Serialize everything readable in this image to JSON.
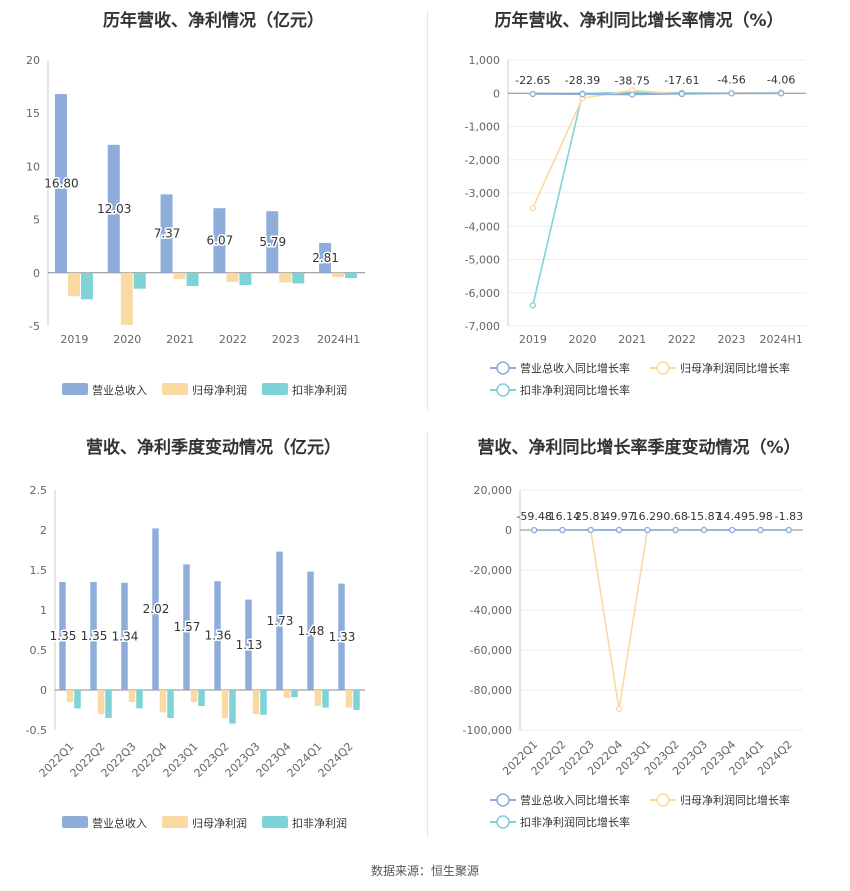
{
  "colors": {
    "revenue": "#8eaddb",
    "net_profit": "#fbd9a2",
    "deducted_profit": "#7fd3d6",
    "revenue_line": "#8eaddb",
    "net_profit_line": "#fbd9a2",
    "deducted_line": "#7fd3d6"
  },
  "source": "数据来源：恒生聚源",
  "chart_data": [
    {
      "type": "bar",
      "title": "历年营收、净利情况（亿元）",
      "categories": [
        "2019",
        "2020",
        "2021",
        "2022",
        "2023",
        "2024H1"
      ],
      "ylim": [
        -5,
        20
      ],
      "yticks": [
        "20",
        "15",
        "10",
        "5",
        "0",
        "-5"
      ],
      "series": [
        {
          "name": "营业总收入",
          "values": [
            16.8,
            12.03,
            7.37,
            6.07,
            5.79,
            2.81
          ],
          "labels": [
            "16.80",
            "12.03",
            "7.37",
            "6.07",
            "5.79",
            "2.81"
          ]
        },
        {
          "name": "归母净利润",
          "values": [
            -2.2,
            -4.9,
            -0.6,
            -0.85,
            -0.9,
            -0.4
          ]
        },
        {
          "name": "扣非净利润",
          "values": [
            -2.5,
            -1.5,
            -1.25,
            -1.15,
            -1.0,
            -0.5
          ]
        }
      ],
      "legend": "bottom"
    },
    {
      "type": "line",
      "title": "历年营收、净利同比增长率情况（%）",
      "categories": [
        "2019",
        "2020",
        "2021",
        "2022",
        "2023",
        "2024H1"
      ],
      "ylim": [
        -7000,
        1000
      ],
      "yticks": [
        "1,000",
        "0",
        "-1,000",
        "-2,000",
        "-3,000",
        "-4,000",
        "-5,000",
        "-6,000",
        "-7,000"
      ],
      "series": [
        {
          "name": "营业总收入同比增长率",
          "values": [
            -22.65,
            -28.39,
            -38.75,
            -17.61,
            -4.56,
            -4.06
          ],
          "labels": [
            "-22.65",
            "-28.39",
            "-38.75",
            "-17.61",
            "-4.56",
            "-4.06"
          ]
        },
        {
          "name": "归母净利润同比增长率",
          "values": [
            -3450,
            -150,
            90,
            -30,
            10,
            5
          ]
        },
        {
          "name": "扣非净利润同比增长率",
          "values": [
            -6380,
            -10,
            30,
            10,
            5,
            20
          ]
        }
      ],
      "legend": "bottom"
    },
    {
      "type": "bar",
      "title": "营收、净利季度变动情况（亿元）",
      "categories": [
        "2022Q1",
        "2022Q2",
        "2022Q3",
        "2022Q4",
        "2023Q1",
        "2023Q2",
        "2023Q3",
        "2023Q4",
        "2024Q1",
        "2024Q2"
      ],
      "ylim": [
        -0.5,
        2.5
      ],
      "yticks": [
        "2.5",
        "2",
        "1.5",
        "1",
        "0.5",
        "0",
        "-0.5"
      ],
      "series": [
        {
          "name": "营业总收入",
          "values": [
            1.35,
            1.35,
            1.34,
            2.02,
            1.57,
            1.36,
            1.13,
            1.73,
            1.48,
            1.33
          ],
          "labels": [
            "1.35",
            "1.35",
            "1.34",
            "2.02",
            "1.57",
            "1.36",
            "1.13",
            "1.73",
            "1.48",
            "1.33"
          ]
        },
        {
          "name": "归母净利润",
          "values": [
            -0.15,
            -0.3,
            -0.15,
            -0.28,
            -0.15,
            -0.35,
            -0.3,
            -0.1,
            -0.2,
            -0.22
          ]
        },
        {
          "name": "扣非净利润",
          "values": [
            -0.23,
            -0.35,
            -0.23,
            -0.35,
            -0.2,
            -0.42,
            -0.31,
            -0.09,
            -0.22,
            -0.25
          ]
        }
      ],
      "legend": "bottom"
    },
    {
      "type": "line",
      "title": "营收、净利同比增长率季度变动情况（%）",
      "categories": [
        "2022Q1",
        "2022Q2",
        "2022Q3",
        "2022Q4",
        "2023Q1",
        "2023Q2",
        "2023Q3",
        "2023Q4",
        "2024Q1",
        "2024Q2"
      ],
      "ylim": [
        -100000,
        20000
      ],
      "yticks": [
        "20,000",
        "0",
        "-20,000",
        "-40,000",
        "-60,000",
        "-80,000",
        "-100,000"
      ],
      "series": [
        {
          "name": "营业总收入同比增长率",
          "values": [
            -59.48,
            -16.14,
            25.81,
            49.97,
            16.29,
            0.68,
            -15.87,
            14.49,
            5.98,
            -1.83
          ],
          "labels": [
            "-59.48",
            "-16.14",
            "25.81",
            "49.97",
            "16.29",
            "0.68",
            "-15.87",
            "14.49",
            "5.98",
            "-1.83"
          ]
        },
        {
          "name": "归母净利润同比增长率",
          "values": [
            -50,
            -80,
            0,
            -89500,
            -60,
            -30,
            40,
            20,
            -10,
            -15
          ]
        },
        {
          "name": "扣非净利润同比增长率",
          "values": [
            -70,
            -60,
            -40,
            -100,
            -50,
            -20,
            30,
            15,
            -20,
            -30
          ]
        }
      ],
      "legend": "bottom"
    }
  ]
}
